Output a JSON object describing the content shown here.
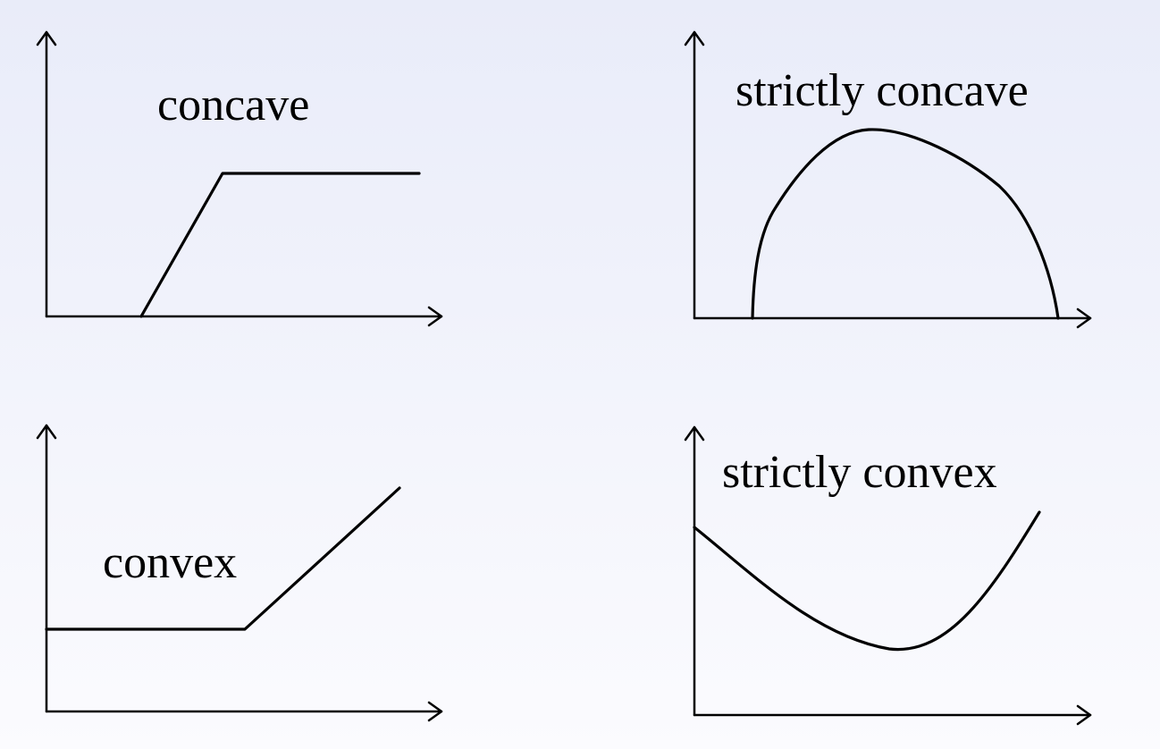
{
  "panels": [
    {
      "id": "concave",
      "label": "concave"
    },
    {
      "id": "strictly-concave",
      "label": "strictly concave"
    },
    {
      "id": "convex",
      "label": "convex"
    },
    {
      "id": "strictly-convex",
      "label": "strictly convex"
    }
  ],
  "colors": {
    "ink": "#000000",
    "background_top": "#e9ecf9",
    "background_bottom": "#fbfbfe"
  }
}
